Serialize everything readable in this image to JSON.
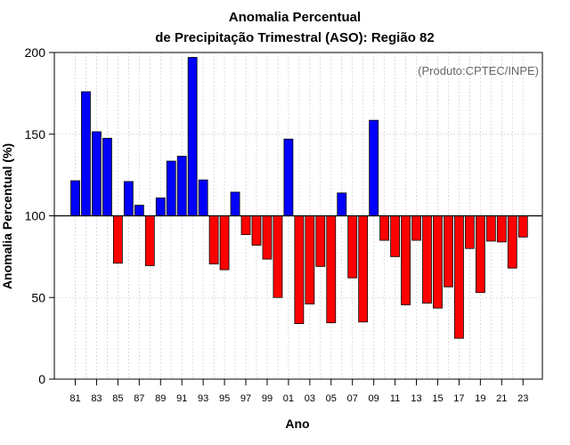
{
  "chart_data": {
    "type": "bar",
    "title_line1": "Anomalia Percentual",
    "title_line2": "de Precipitação Trimestral (ASO): Região 82",
    "xlabel": "Ano",
    "ylabel": "Anomalia Percentual (%)",
    "credit": "(Produto:CPTEC/INPE)",
    "baseline": 100,
    "ylim": [
      0,
      200
    ],
    "yticks": [
      0,
      50,
      100,
      150,
      200
    ],
    "years": [
      "81",
      "82",
      "83",
      "84",
      "85",
      "86",
      "87",
      "88",
      "89",
      "90",
      "91",
      "92",
      "93",
      "94",
      "95",
      "96",
      "97",
      "98",
      "99",
      "00",
      "01",
      "02",
      "03",
      "04",
      "05",
      "06",
      "07",
      "08",
      "09",
      "10",
      "11",
      "12",
      "13",
      "14",
      "15",
      "16",
      "17",
      "18",
      "19",
      "20",
      "21",
      "22",
      "23"
    ],
    "xtick_labels": [
      "81",
      "83",
      "85",
      "87",
      "89",
      "91",
      "93",
      "95",
      "97",
      "99",
      "01",
      "03",
      "05",
      "07",
      "09",
      "11",
      "13",
      "15",
      "17",
      "19",
      "21",
      "23"
    ],
    "values": [
      121.5,
      176,
      151.5,
      147.5,
      71,
      121,
      106.5,
      69.5,
      111,
      133.5,
      136.5,
      197,
      122,
      70.5,
      67,
      114.5,
      88.5,
      82,
      73.5,
      50,
      147,
      34,
      46,
      69,
      34.5,
      114,
      62,
      35,
      158.5,
      85,
      75,
      45.5,
      85,
      46.5,
      43.5,
      56.5,
      25,
      80,
      53,
      84.5,
      84,
      68,
      87
    ],
    "colors": {
      "above": "#0000ff",
      "below": "#ff0000",
      "grid": "#d3d3d3",
      "baseline": "#000000"
    }
  }
}
